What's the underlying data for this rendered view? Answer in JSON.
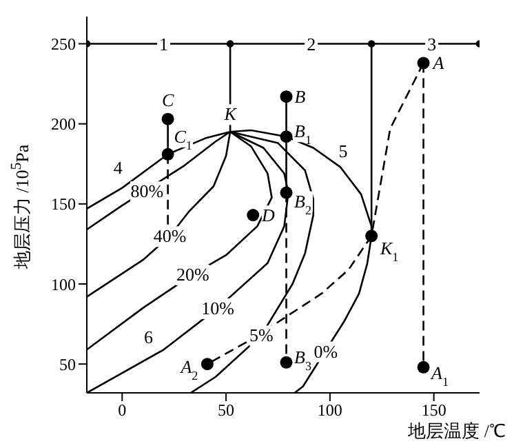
{
  "chart_data": {
    "type": "line",
    "xlabel": "地层温度 /℃",
    "ylabel": "地层压力 /10$^{5}$Pa",
    "xlim": [
      -17,
      172
    ],
    "ylim": [
      32,
      267
    ],
    "xticks": [
      0,
      50,
      100,
      150
    ],
    "yticks": [
      50,
      100,
      150,
      200,
      250
    ],
    "series": [
      {
        "color": "#000000",
        "line_style": "solid",
        "x": [
          -17,
          0,
          22,
          40,
          52,
          62,
          79,
          92,
          105,
          115,
          120,
          120,
          118,
          114,
          107,
          87,
          83
        ],
        "values": [
          147,
          160,
          181,
          191,
          195,
          196,
          192,
          185,
          173,
          156,
          136,
          130,
          113,
          94,
          77,
          36,
          32
        ]
      },
      {
        "color": "#000000",
        "line_style": "solid",
        "x": [
          -17,
          0,
          30,
          45,
          52
        ],
        "values": [
          134,
          149,
          174,
          189,
          195
        ]
      },
      {
        "color": "#000000",
        "line_style": "solid",
        "x": [
          52,
          50,
          44,
          32,
          23,
          10,
          -17
        ],
        "values": [
          195,
          180,
          161,
          145,
          130,
          115,
          92
        ]
      },
      {
        "color": "#000000",
        "line_style": "solid",
        "x": [
          52,
          62,
          70,
          72,
          65,
          50,
          34,
          10,
          -17
        ],
        "values": [
          195,
          186,
          169,
          154,
          136,
          118,
          106,
          85,
          59
        ]
      },
      {
        "color": "#000000",
        "line_style": "solid",
        "x": [
          52,
          68,
          78,
          80,
          78,
          70,
          46,
          20,
          -17
        ],
        "values": [
          195,
          185,
          169,
          157,
          136,
          113,
          85,
          59,
          32
        ]
      },
      {
        "color": "#000000",
        "line_style": "solid",
        "x": [
          52,
          75,
          88,
          92,
          92,
          88,
          82,
          67,
          45,
          33
        ],
        "values": [
          195,
          188,
          171,
          153,
          143,
          119,
          100,
          68,
          42,
          32
        ]
      },
      {
        "color": "#000000",
        "line_style": "dashed",
        "x": [
          145,
          129,
          120,
          109,
          96,
          63,
          41
        ],
        "values": [
          238,
          197,
          130,
          109,
          94,
          66,
          50
        ]
      },
      {
        "color": "#000000",
        "line_style": "dashed",
        "x": [
          145,
          145
        ],
        "values": [
          238,
          48
        ]
      },
      {
        "color": "#000000",
        "line_style": "solid",
        "x": [
          79,
          79
        ],
        "values": [
          217,
          157
        ]
      },
      {
        "color": "#000000",
        "line_style": "dashed",
        "x": [
          79,
          79
        ],
        "values": [
          157,
          51
        ]
      },
      {
        "color": "#000000",
        "line_style": "solid",
        "x": [
          22,
          22
        ],
        "values": [
          203,
          181
        ]
      },
      {
        "color": "#000000",
        "line_style": "dashed",
        "x": [
          22,
          22
        ],
        "values": [
          181,
          136
        ]
      },
      {
        "color": "#000000",
        "line_style": "solid",
        "x": [
          52,
          52
        ],
        "values": [
          250,
          195
        ]
      },
      {
        "color": "#000000",
        "line_style": "solid",
        "x": [
          120,
          120
        ],
        "values": [
          250,
          130
        ]
      },
      {
        "color": "#000000",
        "line_style": "solid",
        "marker": "circle",
        "x": [
          -17,
          52,
          120,
          172
        ],
        "values": [
          250,
          250,
          250,
          250
        ]
      },
      {
        "type": "scatter",
        "color": "#000000",
        "marker": "circle",
        "x": [
          145,
          145,
          41,
          79,
          79,
          79,
          79,
          22,
          22,
          63,
          120
        ],
        "values": [
          238,
          48,
          50,
          217,
          192,
          157,
          51,
          203,
          181,
          143,
          130
        ]
      }
    ],
    "annotations": [
      {
        "text": "A",
        "x": 145,
        "y": 238
      },
      {
        "text": "A$_{1}$",
        "x": 145,
        "y": 48
      },
      {
        "text": "A$_{2}$",
        "x": 41,
        "y": 50
      },
      {
        "text": "B",
        "x": 79,
        "y": 217
      },
      {
        "text": "B$_{1}$",
        "x": 79,
        "y": 192
      },
      {
        "text": "B$_{2}$",
        "x": 79,
        "y": 157
      },
      {
        "text": "B$_{3}$",
        "x": 79,
        "y": 51
      },
      {
        "text": "C",
        "x": 22,
        "y": 203
      },
      {
        "text": "C$_{1}$",
        "x": 22,
        "y": 181
      },
      {
        "text": "D",
        "x": 63,
        "y": 143
      },
      {
        "text": "K",
        "x": 52,
        "y": 195
      },
      {
        "text": "K$_{1}$",
        "x": 120,
        "y": 130
      },
      {
        "text": "4",
        "x": 0,
        "y": 160
      },
      {
        "text": "5",
        "x": 105,
        "y": 173
      },
      {
        "text": "6",
        "x": 20,
        "y": 59
      },
      {
        "text": "80%",
        "x": 12,
        "y": 158
      },
      {
        "text": "40%",
        "x": 23,
        "y": 130
      },
      {
        "text": "20%",
        "x": 34,
        "y": 106
      },
      {
        "text": "10%",
        "x": 46,
        "y": 85
      },
      {
        "text": "5%",
        "x": 67,
        "y": 68
      },
      {
        "text": "0%",
        "x": 98,
        "y": 58
      },
      {
        "text": "1",
        "x": 20,
        "y": 250
      },
      {
        "text": "2",
        "x": 91,
        "y": 250
      },
      {
        "text": "3",
        "x": 149,
        "y": 250
      }
    ]
  }
}
